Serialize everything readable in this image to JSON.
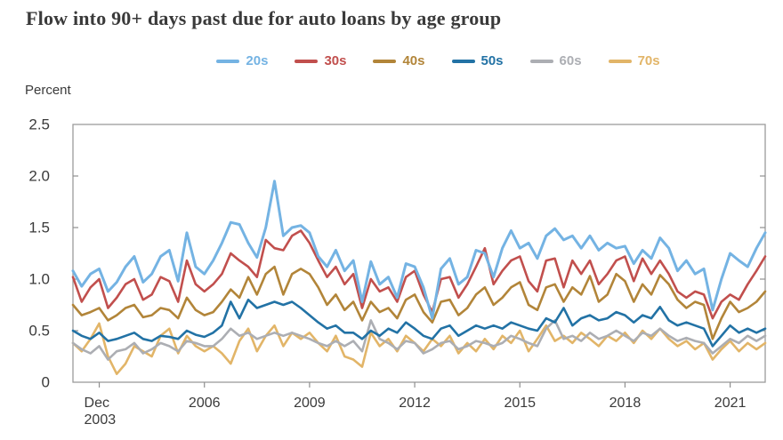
{
  "title": "Flow into 90+ days past due for auto loans by age group",
  "axis": {
    "unit_label": "Percent",
    "ytick_labels": [
      "0",
      "0.5",
      "1.0",
      "1.5",
      "2.0",
      "2.5"
    ],
    "first_xtick_line1": "Dec",
    "first_xtick_line2": "2003"
  },
  "style": {
    "border_color": "#9b9b9b",
    "tick_color": "#8f8f8f",
    "text_color": "#3a3a3a"
  },
  "chart_data": {
    "type": "line",
    "title": "Flow into 90+ days past due for auto loans by age group",
    "xlabel": "",
    "ylabel": "Percent",
    "ylim": [
      0,
      2.5
    ],
    "yticks": [
      0,
      0.5,
      1.0,
      1.5,
      2.0,
      2.5
    ],
    "grid": false,
    "legend_position": "top-center",
    "x_frequency": "quarterly",
    "x_start": "2003Q1",
    "x_end": "2022Q4",
    "xticks": [
      {
        "quarter_index": 3,
        "line1": "Dec",
        "line2": "2003"
      },
      {
        "quarter_index": 15,
        "line1": "2006",
        "line2": ""
      },
      {
        "quarter_index": 27,
        "line1": "2009",
        "line2": ""
      },
      {
        "quarter_index": 39,
        "line1": "2012",
        "line2": ""
      },
      {
        "quarter_index": 51,
        "line1": "2015",
        "line2": ""
      },
      {
        "quarter_index": 63,
        "line1": "2018",
        "line2": ""
      },
      {
        "quarter_index": 75,
        "line1": "2021",
        "line2": ""
      }
    ],
    "series": [
      {
        "name": "20s",
        "color": "#74b3e3",
        "values": [
          1.08,
          0.93,
          1.05,
          1.1,
          0.88,
          0.97,
          1.12,
          1.22,
          0.97,
          1.05,
          1.22,
          1.28,
          0.98,
          1.45,
          1.12,
          1.05,
          1.18,
          1.35,
          1.55,
          1.53,
          1.35,
          1.21,
          1.5,
          1.95,
          1.42,
          1.5,
          1.52,
          1.45,
          1.22,
          1.12,
          1.28,
          1.08,
          1.18,
          0.78,
          1.17,
          0.95,
          1.02,
          0.82,
          1.15,
          1.12,
          0.92,
          0.62,
          1.1,
          1.2,
          0.95,
          1.02,
          1.28,
          1.25,
          1.02,
          1.3,
          1.47,
          1.3,
          1.35,
          1.2,
          1.42,
          1.49,
          1.38,
          1.42,
          1.3,
          1.42,
          1.28,
          1.35,
          1.3,
          1.32,
          1.15,
          1.28,
          1.2,
          1.4,
          1.3,
          1.08,
          1.18,
          1.05,
          1.1,
          0.7,
          1.0,
          1.25,
          1.18,
          1.12,
          1.3,
          1.45
        ]
      },
      {
        "name": "30s",
        "color": "#c14f4d",
        "values": [
          1.02,
          0.78,
          0.92,
          1.0,
          0.72,
          0.82,
          0.95,
          1.0,
          0.8,
          0.85,
          1.02,
          0.98,
          0.78,
          1.18,
          0.95,
          0.88,
          0.95,
          1.05,
          1.25,
          1.18,
          1.12,
          1.02,
          1.38,
          1.3,
          1.28,
          1.42,
          1.47,
          1.35,
          1.18,
          1.02,
          1.12,
          0.95,
          1.05,
          0.72,
          1.0,
          0.88,
          0.92,
          0.78,
          1.02,
          1.08,
          0.85,
          0.68,
          1.0,
          1.02,
          0.82,
          0.95,
          1.12,
          1.3,
          0.95,
          1.08,
          1.18,
          1.22,
          0.98,
          0.88,
          1.18,
          1.2,
          0.92,
          1.18,
          1.05,
          1.18,
          0.95,
          1.05,
          1.18,
          1.22,
          0.98,
          1.2,
          1.05,
          1.18,
          1.05,
          0.88,
          0.82,
          0.88,
          0.85,
          0.62,
          0.78,
          0.85,
          0.8,
          0.95,
          1.08,
          1.22
        ]
      },
      {
        "name": "40s",
        "color": "#b28539",
        "values": [
          0.75,
          0.65,
          0.68,
          0.72,
          0.6,
          0.65,
          0.72,
          0.75,
          0.63,
          0.65,
          0.72,
          0.7,
          0.62,
          0.82,
          0.7,
          0.65,
          0.68,
          0.78,
          0.9,
          0.82,
          1.02,
          0.85,
          1.05,
          1.12,
          0.85,
          1.05,
          1.1,
          1.05,
          0.92,
          0.75,
          0.85,
          0.7,
          0.78,
          0.6,
          0.78,
          0.68,
          0.72,
          0.62,
          0.8,
          0.85,
          0.68,
          0.58,
          0.78,
          0.8,
          0.65,
          0.72,
          0.85,
          0.92,
          0.75,
          0.82,
          0.92,
          0.97,
          0.75,
          0.7,
          0.92,
          0.95,
          0.78,
          0.92,
          0.85,
          1.03,
          0.78,
          0.85,
          1.05,
          0.98,
          0.78,
          0.95,
          0.85,
          1.04,
          0.95,
          0.8,
          0.72,
          0.78,
          0.75,
          0.42,
          0.62,
          0.78,
          0.68,
          0.72,
          0.78,
          0.88
        ]
      },
      {
        "name": "50s",
        "color": "#2272a5",
        "values": [
          0.5,
          0.45,
          0.42,
          0.48,
          0.4,
          0.42,
          0.45,
          0.48,
          0.42,
          0.4,
          0.45,
          0.44,
          0.42,
          0.5,
          0.46,
          0.44,
          0.48,
          0.55,
          0.78,
          0.62,
          0.8,
          0.72,
          0.75,
          0.78,
          0.75,
          0.78,
          0.72,
          0.65,
          0.58,
          0.52,
          0.55,
          0.48,
          0.48,
          0.42,
          0.5,
          0.45,
          0.52,
          0.48,
          0.58,
          0.52,
          0.45,
          0.42,
          0.52,
          0.55,
          0.45,
          0.5,
          0.55,
          0.52,
          0.55,
          0.52,
          0.58,
          0.55,
          0.52,
          0.5,
          0.62,
          0.58,
          0.72,
          0.55,
          0.62,
          0.65,
          0.6,
          0.62,
          0.68,
          0.65,
          0.58,
          0.65,
          0.62,
          0.73,
          0.6,
          0.55,
          0.58,
          0.55,
          0.52,
          0.35,
          0.45,
          0.55,
          0.48,
          0.52,
          0.48,
          0.52
        ]
      },
      {
        "name": "60s",
        "color": "#acaeb3",
        "values": [
          0.38,
          0.32,
          0.28,
          0.35,
          0.22,
          0.3,
          0.32,
          0.38,
          0.28,
          0.32,
          0.38,
          0.35,
          0.3,
          0.4,
          0.38,
          0.35,
          0.35,
          0.42,
          0.52,
          0.45,
          0.48,
          0.42,
          0.45,
          0.48,
          0.45,
          0.48,
          0.45,
          0.42,
          0.38,
          0.35,
          0.4,
          0.35,
          0.4,
          0.3,
          0.6,
          0.42,
          0.38,
          0.32,
          0.4,
          0.38,
          0.28,
          0.32,
          0.38,
          0.4,
          0.32,
          0.35,
          0.4,
          0.38,
          0.35,
          0.38,
          0.45,
          0.42,
          0.38,
          0.35,
          0.52,
          0.6,
          0.42,
          0.45,
          0.4,
          0.48,
          0.42,
          0.45,
          0.5,
          0.45,
          0.4,
          0.48,
          0.45,
          0.52,
          0.45,
          0.4,
          0.43,
          0.4,
          0.38,
          0.28,
          0.35,
          0.42,
          0.38,
          0.45,
          0.4,
          0.45
        ]
      },
      {
        "name": "70s",
        "color": "#e2b568",
        "values": [
          0.38,
          0.3,
          0.42,
          0.57,
          0.25,
          0.08,
          0.18,
          0.35,
          0.3,
          0.25,
          0.45,
          0.52,
          0.28,
          0.45,
          0.35,
          0.3,
          0.35,
          0.28,
          0.18,
          0.4,
          0.52,
          0.3,
          0.45,
          0.55,
          0.35,
          0.48,
          0.42,
          0.48,
          0.38,
          0.3,
          0.45,
          0.25,
          0.22,
          0.15,
          0.48,
          0.35,
          0.42,
          0.3,
          0.45,
          0.38,
          0.3,
          0.42,
          0.35,
          0.45,
          0.28,
          0.38,
          0.3,
          0.42,
          0.32,
          0.45,
          0.38,
          0.5,
          0.3,
          0.42,
          0.55,
          0.4,
          0.45,
          0.38,
          0.48,
          0.42,
          0.35,
          0.45,
          0.4,
          0.48,
          0.38,
          0.5,
          0.42,
          0.52,
          0.42,
          0.35,
          0.4,
          0.32,
          0.38,
          0.22,
          0.32,
          0.4,
          0.3,
          0.38,
          0.32,
          0.38
        ]
      }
    ]
  }
}
